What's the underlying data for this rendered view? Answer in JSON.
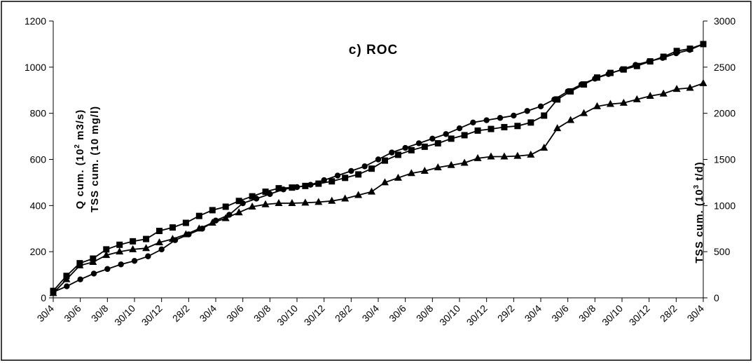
{
  "chart_data": {
    "type": "line",
    "title": "c) ROC",
    "ylabel_left_line1_pre": "Q cum. (10",
    "ylabel_left_line1_sup": "2",
    "ylabel_left_line1_post": " m3/s)",
    "ylabel_left_line2": "TSS cum. (10 mg/l)",
    "ylabel_right_pre": "TSS cum. (10",
    "ylabel_right_sup": "3",
    "ylabel_right_post": " t/d)",
    "xlabel": "",
    "ylim_left": [
      0,
      1200
    ],
    "ylim_right": [
      0,
      3000
    ],
    "yticks_left": [
      0,
      200,
      400,
      600,
      800,
      1000,
      1200
    ],
    "yticks_right": [
      0,
      500,
      1000,
      1500,
      2000,
      2500,
      3000
    ],
    "x_tick_labels": [
      "30/4",
      "30/6",
      "30/8",
      "30/10",
      "30/12",
      "28/2",
      "30/4",
      "30/6",
      "30/8",
      "30/10",
      "30/12",
      "28/2",
      "30/4",
      "30/6",
      "30/8",
      "30/10",
      "30/12",
      "29/2",
      "30/4",
      "30/6",
      "30/8",
      "30/10",
      "30/12",
      "28/2",
      "30/4"
    ],
    "grid": false,
    "series": [
      {
        "marker": "circle",
        "axis": "left",
        "values": [
          25,
          50,
          80,
          105,
          125,
          145,
          160,
          180,
          210,
          250,
          275,
          300,
          335,
          360,
          410,
          430,
          450,
          470,
          480,
          490,
          510,
          530,
          550,
          570,
          600,
          630,
          650,
          670,
          690,
          710,
          735,
          760,
          770,
          780,
          790,
          810,
          830,
          860,
          895,
          925,
          950,
          970,
          990,
          1010,
          1025,
          1040,
          1060,
          1075,
          1100
        ]
      },
      {
        "marker": "square",
        "axis": "left",
        "values": [
          30,
          95,
          150,
          170,
          210,
          230,
          245,
          255,
          290,
          305,
          325,
          355,
          380,
          395,
          420,
          440,
          460,
          475,
          478,
          485,
          495,
          505,
          520,
          535,
          560,
          595,
          620,
          640,
          655,
          670,
          690,
          705,
          725,
          732,
          740,
          745,
          760,
          790,
          860,
          895,
          925,
          955,
          975,
          990,
          1005,
          1025,
          1045,
          1070,
          1080,
          1100
        ]
      },
      {
        "marker": "triangle",
        "axis": "left",
        "values": [
          20,
          80,
          140,
          155,
          185,
          200,
          210,
          215,
          240,
          255,
          275,
          300,
          325,
          345,
          370,
          395,
          405,
          410,
          410,
          412,
          415,
          420,
          430,
          445,
          460,
          500,
          520,
          540,
          550,
          565,
          575,
          585,
          605,
          612,
          612,
          615,
          620,
          650,
          735,
          770,
          800,
          830,
          840,
          845,
          860,
          875,
          885,
          905,
          910,
          930
        ]
      }
    ]
  }
}
